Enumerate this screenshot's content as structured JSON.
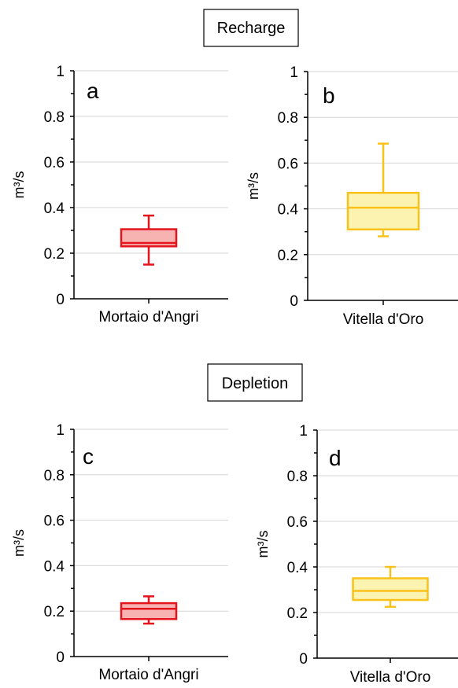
{
  "sections": [
    {
      "title": "Recharge"
    },
    {
      "title": "Depletion"
    }
  ],
  "colors": {
    "red": {
      "stroke": "#e3141b",
      "fill": "#f6b3b2"
    },
    "yellow": {
      "stroke": "#f9c21b",
      "fill": "#fdf3b0"
    }
  },
  "chart_data": [
    {
      "type": "box",
      "panel": "a",
      "section": "Recharge",
      "ylabel": "m³/s",
      "ylim": [
        0,
        1
      ],
      "yticks": [
        0,
        0.2,
        0.4,
        0.6,
        0.8,
        1
      ],
      "ytick_labels": [
        "0",
        "0.2",
        "0.4",
        "0.6",
        "0.8",
        "1"
      ],
      "grid": true,
      "categories": [
        "Mortaio d'Angri"
      ],
      "color": "red",
      "box": {
        "min": 0.15,
        "q1": 0.23,
        "median": 0.245,
        "q3": 0.305,
        "max": 0.365
      }
    },
    {
      "type": "box",
      "panel": "b",
      "section": "Recharge",
      "ylabel": "m³/s",
      "ylim": [
        0,
        1
      ],
      "yticks": [
        0,
        0.2,
        0.4,
        0.6,
        0.8,
        1
      ],
      "ytick_labels": [
        "0",
        "0.2",
        "0.4",
        "0.6",
        "0.8",
        "1"
      ],
      "grid": true,
      "categories": [
        "Vitella d'Oro"
      ],
      "color": "yellow",
      "box": {
        "min": 0.28,
        "q1": 0.31,
        "median": 0.405,
        "q3": 0.47,
        "max": 0.685
      }
    },
    {
      "type": "box",
      "panel": "c",
      "section": "Depletion",
      "ylabel": "m³/s",
      "ylim": [
        0,
        1
      ],
      "yticks": [
        0,
        0.2,
        0.4,
        0.6,
        0.8,
        1
      ],
      "ytick_labels": [
        "0",
        "0.2",
        "0.4",
        "0.6",
        "0.8",
        "1"
      ],
      "grid": true,
      "categories": [
        "Mortaio d'Angri"
      ],
      "color": "red",
      "box": {
        "min": 0.145,
        "q1": 0.165,
        "median": 0.21,
        "q3": 0.235,
        "max": 0.265
      }
    },
    {
      "type": "box",
      "panel": "d",
      "section": "Depletion",
      "ylabel": "m³/s",
      "ylim": [
        0,
        1
      ],
      "yticks": [
        0,
        0.2,
        0.4,
        0.6,
        0.8,
        1
      ],
      "ytick_labels": [
        "0",
        "0.2",
        "0.4",
        "0.6",
        "0.8",
        "1"
      ],
      "grid": true,
      "categories": [
        "Vitella d'Oro"
      ],
      "color": "yellow",
      "box": {
        "min": 0.225,
        "q1": 0.255,
        "median": 0.295,
        "q3": 0.35,
        "max": 0.4
      }
    }
  ]
}
